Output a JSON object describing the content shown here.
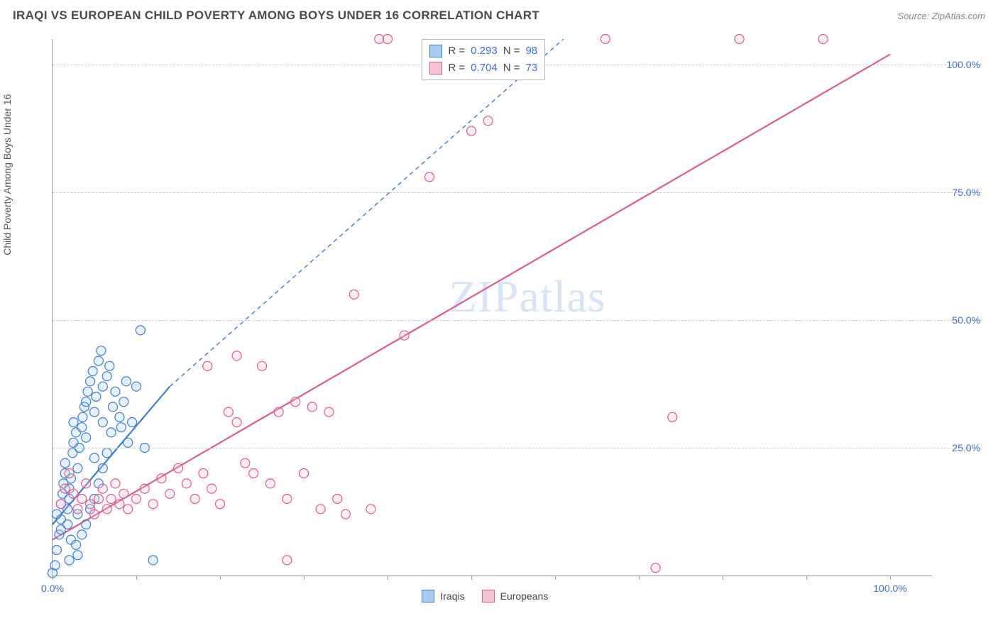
{
  "header": {
    "title": "IRAQI VS EUROPEAN CHILD POVERTY AMONG BOYS UNDER 16 CORRELATION CHART",
    "source": "Source: ZipAtlas.com"
  },
  "watermark": {
    "zip": "ZIP",
    "atlas": "atlas"
  },
  "chart": {
    "type": "scatter",
    "y_axis_label": "Child Poverty Among Boys Under 16",
    "xlim": [
      0,
      105
    ],
    "ylim": [
      0,
      105
    ],
    "x_ticks": [
      0,
      10,
      20,
      30,
      40,
      50,
      60,
      70,
      80,
      90,
      100
    ],
    "x_tick_labels": {
      "0": "0.0%",
      "100": "100.0%"
    },
    "y_ticks": [
      25,
      50,
      75,
      100
    ],
    "y_tick_labels": {
      "25": "25.0%",
      "50": "50.0%",
      "75": "75.0%",
      "100": "100.0%"
    },
    "grid_color": "#cccccc",
    "grid_dash": "4,4",
    "axis_color": "#999999",
    "background_color": "#ffffff",
    "marker_radius": 6.5,
    "marker_stroke_width": 1.2,
    "marker_fill_opacity": 0.28,
    "series": [
      {
        "name": "Iraqis",
        "color": "#4f8fd9",
        "fill": "#a9cdf2",
        "stroke": "#3b7dcf",
        "R_label": "R  =",
        "R": "0.293",
        "N_label": "N  =",
        "N": "98",
        "trend_solid": {
          "x1": 0,
          "y1": 10,
          "x2": 14,
          "y2": 37
        },
        "trend_dash": {
          "x1": 14,
          "y1": 37,
          "x2": 61,
          "y2": 105
        },
        "points": [
          [
            0,
            0.5
          ],
          [
            0.3,
            2
          ],
          [
            0.5,
            5
          ],
          [
            0.8,
            8
          ],
          [
            1,
            11
          ],
          [
            1,
            14
          ],
          [
            1.2,
            16
          ],
          [
            1.3,
            18
          ],
          [
            1.5,
            20
          ],
          [
            1.5,
            22
          ],
          [
            1.8,
            13
          ],
          [
            2,
            15
          ],
          [
            2,
            17
          ],
          [
            2.2,
            19
          ],
          [
            2.4,
            24
          ],
          [
            2.5,
            26
          ],
          [
            2.5,
            30
          ],
          [
            2.8,
            28
          ],
          [
            3,
            12
          ],
          [
            3,
            21
          ],
          [
            3.2,
            25
          ],
          [
            3.5,
            29
          ],
          [
            3.6,
            31
          ],
          [
            3.8,
            33
          ],
          [
            4,
            27
          ],
          [
            4,
            34
          ],
          [
            4.2,
            36
          ],
          [
            4.5,
            38
          ],
          [
            4.8,
            40
          ],
          [
            5,
            23
          ],
          [
            5,
            32
          ],
          [
            5.2,
            35
          ],
          [
            5.5,
            42
          ],
          [
            5.8,
            44
          ],
          [
            6,
            30
          ],
          [
            6,
            37
          ],
          [
            6.5,
            39
          ],
          [
            6.8,
            41
          ],
          [
            7,
            28
          ],
          [
            7.2,
            33
          ],
          [
            7.5,
            36
          ],
          [
            8,
            31
          ],
          [
            8.2,
            29
          ],
          [
            8.5,
            34
          ],
          [
            8.8,
            38
          ],
          [
            9,
            26
          ],
          [
            9.5,
            30
          ],
          [
            10,
            37
          ],
          [
            10.5,
            48
          ],
          [
            11,
            25
          ],
          [
            12,
            3
          ],
          [
            2,
            3
          ],
          [
            3,
            4
          ],
          [
            1,
            9
          ],
          [
            0.5,
            12
          ],
          [
            1.8,
            10
          ],
          [
            2.2,
            7
          ],
          [
            2.8,
            6
          ],
          [
            3.5,
            8
          ],
          [
            4,
            10
          ],
          [
            4.5,
            13
          ],
          [
            5,
            15
          ],
          [
            5.5,
            18
          ],
          [
            6,
            21
          ],
          [
            6.5,
            24
          ]
        ]
      },
      {
        "name": "Europeans",
        "color": "#e76b9a",
        "fill": "#f6c4d6",
        "stroke": "#e05a8d",
        "R_label": "R  =",
        "R": "0.704",
        "N_label": "N  =",
        "N": "73",
        "trend_solid": {
          "x1": 0,
          "y1": 7,
          "x2": 100,
          "y2": 102
        },
        "trend_dash": null,
        "points": [
          [
            1,
            14
          ],
          [
            1.5,
            17
          ],
          [
            2,
            20
          ],
          [
            2.5,
            16
          ],
          [
            3,
            13
          ],
          [
            3.5,
            15
          ],
          [
            4,
            18
          ],
          [
            4.5,
            14
          ],
          [
            5,
            12
          ],
          [
            5.5,
            15
          ],
          [
            6,
            17
          ],
          [
            6.5,
            13
          ],
          [
            7,
            15
          ],
          [
            7.5,
            18
          ],
          [
            8,
            14
          ],
          [
            8.5,
            16
          ],
          [
            9,
            13
          ],
          [
            10,
            15
          ],
          [
            11,
            17
          ],
          [
            12,
            14
          ],
          [
            13,
            19
          ],
          [
            14,
            16
          ],
          [
            15,
            21
          ],
          [
            16,
            18
          ],
          [
            17,
            15
          ],
          [
            18,
            20
          ],
          [
            18.5,
            41
          ],
          [
            19,
            17
          ],
          [
            20,
            14
          ],
          [
            21,
            32
          ],
          [
            22,
            30
          ],
          [
            22,
            43
          ],
          [
            23,
            22
          ],
          [
            24,
            20
          ],
          [
            25,
            41
          ],
          [
            26,
            18
          ],
          [
            27,
            32
          ],
          [
            28,
            15
          ],
          [
            28,
            3
          ],
          [
            29,
            34
          ],
          [
            30,
            20
          ],
          [
            31,
            33
          ],
          [
            32,
            13
          ],
          [
            33,
            32
          ],
          [
            34,
            15
          ],
          [
            35,
            12
          ],
          [
            36,
            55
          ],
          [
            38,
            13
          ],
          [
            39,
            105
          ],
          [
            40,
            105
          ],
          [
            42,
            47
          ],
          [
            45,
            78
          ],
          [
            50,
            87
          ],
          [
            52,
            89
          ],
          [
            66,
            105
          ],
          [
            72,
            1.5
          ],
          [
            74,
            31
          ],
          [
            82,
            105
          ],
          [
            92,
            105
          ]
        ]
      }
    ],
    "legend_top": {
      "border_color": "#bbbbbb",
      "text_color": "#444444",
      "value_color": "#3b6fd6",
      "fontsize": 15
    },
    "legend_bottom": {
      "items": [
        "Iraqis",
        "Europeans"
      ],
      "fontsize": 14,
      "text_color": "#444444"
    }
  }
}
